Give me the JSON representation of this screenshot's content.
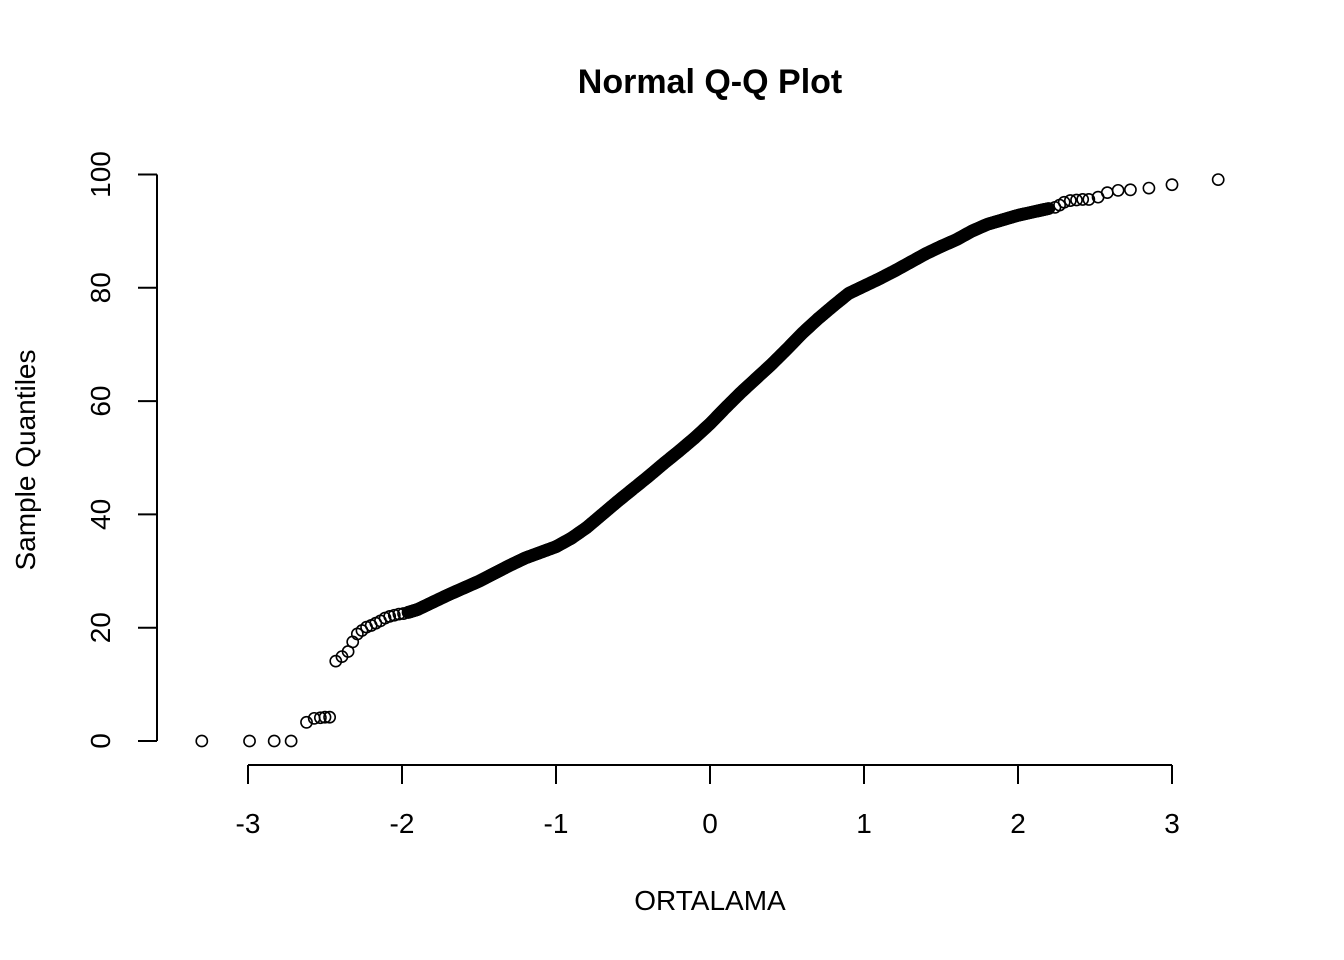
{
  "chart_data": {
    "type": "scatter",
    "title": "Normal Q-Q Plot",
    "xlabel": "ORTALAMA",
    "ylabel": "Sample Quantiles",
    "x_ticks": [
      -3,
      -2,
      -1,
      0,
      1,
      2,
      3
    ],
    "y_ticks": [
      0,
      20,
      40,
      60,
      80,
      100
    ],
    "xlim": [
      -3.3,
      3.3
    ],
    "ylim": [
      0,
      100
    ],
    "grid": false,
    "marker": "open-circle",
    "colors": {
      "points": "#000000",
      "background": "#ffffff"
    },
    "points": [
      {
        "x": -3.3,
        "y": 0
      },
      {
        "x": -2.99,
        "y": 0
      },
      {
        "x": -2.83,
        "y": 0
      },
      {
        "x": -2.72,
        "y": 0
      },
      {
        "x": -2.62,
        "y": 3.3
      },
      {
        "x": -2.57,
        "y": 4.0
      },
      {
        "x": -2.53,
        "y": 4.1
      },
      {
        "x": -2.5,
        "y": 4.2
      },
      {
        "x": -2.47,
        "y": 4.2
      },
      {
        "x": -2.43,
        "y": 14.1
      },
      {
        "x": -2.39,
        "y": 14.9
      },
      {
        "x": -2.35,
        "y": 15.8
      },
      {
        "x": -2.32,
        "y": 17.5
      },
      {
        "x": -2.29,
        "y": 18.9
      },
      {
        "x": -2.26,
        "y": 19.5
      },
      {
        "x": -2.23,
        "y": 20.1
      },
      {
        "x": -2.2,
        "y": 20.4
      },
      {
        "x": -2.17,
        "y": 20.8
      },
      {
        "x": -2.14,
        "y": 21.2
      },
      {
        "x": -2.11,
        "y": 21.7
      },
      {
        "x": -2.08,
        "y": 22.0
      },
      {
        "x": -2.05,
        "y": 22.2
      },
      {
        "x": -2.02,
        "y": 22.4
      },
      {
        "x": -1.99,
        "y": 22.5
      },
      {
        "x": -1.96,
        "y": 22.7
      }
    ],
    "curve_knots": [
      [
        -1.96,
        22.7
      ],
      [
        -1.9,
        23.2
      ],
      [
        -1.8,
        24.5
      ],
      [
        -1.7,
        25.8
      ],
      [
        -1.6,
        27.0
      ],
      [
        -1.5,
        28.2
      ],
      [
        -1.4,
        29.6
      ],
      [
        -1.3,
        31.0
      ],
      [
        -1.2,
        32.3
      ],
      [
        -1.1,
        33.3
      ],
      [
        -1.0,
        34.3
      ],
      [
        -0.9,
        35.8
      ],
      [
        -0.8,
        37.7
      ],
      [
        -0.7,
        40.0
      ],
      [
        -0.6,
        42.3
      ],
      [
        -0.5,
        44.5
      ],
      [
        -0.4,
        46.7
      ],
      [
        -0.3,
        49.0
      ],
      [
        -0.2,
        51.2
      ],
      [
        -0.1,
        53.5
      ],
      [
        0.0,
        56.0
      ],
      [
        0.1,
        58.8
      ],
      [
        0.2,
        61.5
      ],
      [
        0.3,
        64.0
      ],
      [
        0.4,
        66.5
      ],
      [
        0.5,
        69.2
      ],
      [
        0.6,
        72.0
      ],
      [
        0.7,
        74.5
      ],
      [
        0.8,
        76.8
      ],
      [
        0.9,
        79.0
      ],
      [
        1.0,
        80.3
      ],
      [
        1.1,
        81.6
      ],
      [
        1.2,
        83.0
      ],
      [
        1.3,
        84.5
      ],
      [
        1.4,
        86.0
      ],
      [
        1.5,
        87.3
      ],
      [
        1.6,
        88.5
      ],
      [
        1.7,
        90.0
      ],
      [
        1.8,
        91.2
      ],
      [
        1.9,
        92.0
      ],
      [
        2.0,
        92.8
      ],
      [
        2.1,
        93.4
      ],
      [
        2.2,
        94.0
      ]
    ],
    "tail_points": [
      {
        "x": 2.24,
        "y": 94.2
      },
      {
        "x": 2.27,
        "y": 94.6
      },
      {
        "x": 2.3,
        "y": 95.1
      },
      {
        "x": 2.34,
        "y": 95.4
      },
      {
        "x": 2.38,
        "y": 95.5
      },
      {
        "x": 2.42,
        "y": 95.6
      },
      {
        "x": 2.46,
        "y": 95.6
      },
      {
        "x": 2.52,
        "y": 96.0
      },
      {
        "x": 2.58,
        "y": 96.8
      },
      {
        "x": 2.65,
        "y": 97.2
      },
      {
        "x": 2.73,
        "y": 97.3
      },
      {
        "x": 2.85,
        "y": 97.6
      },
      {
        "x": 3.0,
        "y": 98.2
      },
      {
        "x": 3.3,
        "y": 99.1
      }
    ]
  }
}
